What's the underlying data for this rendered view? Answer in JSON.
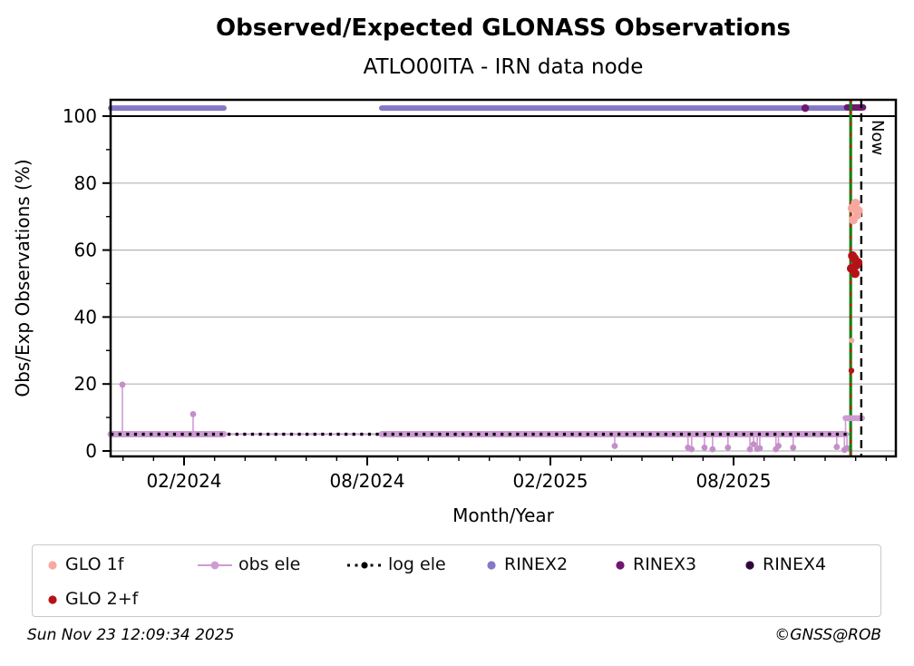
{
  "footer": {
    "generated": "Sun Nov 23 12:09:34 2025",
    "credit": "©GNSS@ROB"
  },
  "chart_data": {
    "type": "line",
    "title": "Observed/Expected GLONASS Observations",
    "subtitle": "ATLO00ITA - IRN data node",
    "xlabel": "Month/Year",
    "ylabel": "Obs/Exp Observations (%)",
    "ylim": [
      -1.5,
      105
    ],
    "xlim_decimal_years": [
      2023.883,
      2026.026
    ],
    "grid": "horizontal-gray",
    "reference_line_100": 100,
    "x_ticks": [
      {
        "decimal_year": 2024.0833,
        "label": "02/2024"
      },
      {
        "decimal_year": 2024.5833,
        "label": "08/2024"
      },
      {
        "decimal_year": 2025.0833,
        "label": "02/2025"
      },
      {
        "decimal_year": 2025.5833,
        "label": "08/2025"
      }
    ],
    "y_ticks_major": [
      0,
      20,
      40,
      60,
      80,
      100
    ],
    "y_ticks_minor": [
      10,
      30,
      50,
      70,
      90
    ],
    "series": {
      "rinex2": {
        "label": "RINEX2",
        "color": "#8379c6",
        "y_pct": 102.4,
        "segments_decimal_years": [
          [
            2023.883,
            2024.192
          ],
          [
            2024.623,
            2025.932
          ]
        ]
      },
      "rinex3": {
        "label": "RINEX3",
        "color": "#6f186f",
        "points": [
          [
            2025.779,
            102.4
          ]
        ],
        "block": {
          "x0": 2025.893,
          "x1": 2025.937,
          "y_pct": 102.6
        }
      },
      "rinex4": {
        "label": "RINEX4",
        "color": "#31073b",
        "points": []
      },
      "obs_ele": {
        "label": "obs ele",
        "color": "#cf9bd3",
        "dot_color": "#c48fc9",
        "baseline_pct": 5,
        "thin_extent": [
          2023.883,
          2025.903
        ],
        "thick_segments": [
          [
            2023.883,
            2024.192
          ],
          [
            2024.623,
            2025.889
          ]
        ],
        "up_spikes": [
          [
            2023.915,
            19.8
          ],
          [
            2024.108,
            11.0
          ]
        ],
        "down_spikes": [
          [
            2025.259,
            1.5
          ],
          [
            2025.459,
            1.0
          ],
          [
            2025.469,
            0.5
          ],
          [
            2025.504,
            1.0
          ],
          [
            2025.526,
            0.5
          ],
          [
            2025.568,
            1.0
          ],
          [
            2025.628,
            0.5
          ],
          [
            2025.638,
            2.0
          ],
          [
            2025.648,
            0.6
          ],
          [
            2025.655,
            0.8
          ],
          [
            2025.699,
            0.5
          ],
          [
            2025.706,
            1.5
          ],
          [
            2025.746,
            1.0
          ],
          [
            2025.865,
            1.2
          ],
          [
            2025.886,
            0.3
          ],
          [
            2025.893,
            0.8
          ]
        ],
        "step": {
          "x0": 2025.889,
          "x1": 2025.934,
          "y_pct": 9.8
        }
      },
      "log_ele": {
        "label": "log ele",
        "color": "#000000",
        "y_pct": 5,
        "extent": [
          2023.883,
          2025.903
        ]
      },
      "glo_1f": {
        "label": "GLO 1f",
        "color": "#f7a8a0",
        "points": [
          [
            2025.907,
            72.5,
            5
          ],
          [
            2025.916,
            74.0,
            5
          ],
          [
            2025.921,
            70.5,
            5
          ],
          [
            2025.91,
            69.0,
            5
          ],
          [
            2025.924,
            71.8,
            5
          ],
          [
            2025.906,
            33.0,
            3
          ]
        ]
      },
      "glo_2f": {
        "label": "GLO 2+f",
        "color": "#b51218",
        "points": [
          [
            2025.905,
            54.5,
            5
          ],
          [
            2025.913,
            57.5,
            5
          ],
          [
            2025.918,
            55.5,
            5
          ],
          [
            2025.908,
            58.3,
            5
          ],
          [
            2025.923,
            56.3,
            5
          ],
          [
            2025.915,
            53.0,
            5
          ],
          [
            2025.905,
            24.0,
            3.2
          ]
        ]
      },
      "event_line": {
        "x_decimal_year": 2025.903,
        "color_line": "#168016",
        "color_overlay": "#e10600"
      }
    },
    "now_marker": {
      "label": "Now",
      "x_decimal_year": 2025.932
    },
    "legend": [
      {
        "label": "GLO 1f",
        "marker": "dot",
        "color": "#f7a8a0"
      },
      {
        "label": "obs ele",
        "marker": "line-dot",
        "color": "#cf9bd3"
      },
      {
        "label": "log ele",
        "marker": "dotted-line-dot",
        "color": "#000000"
      },
      {
        "label": "RINEX2",
        "marker": "dot",
        "color": "#8379c6"
      },
      {
        "label": "RINEX3",
        "marker": "dot",
        "color": "#6f186f"
      },
      {
        "label": "RINEX4",
        "marker": "dot",
        "color": "#31073b"
      },
      {
        "label": "GLO 2+f",
        "marker": "dot",
        "color": "#b51218"
      }
    ]
  }
}
